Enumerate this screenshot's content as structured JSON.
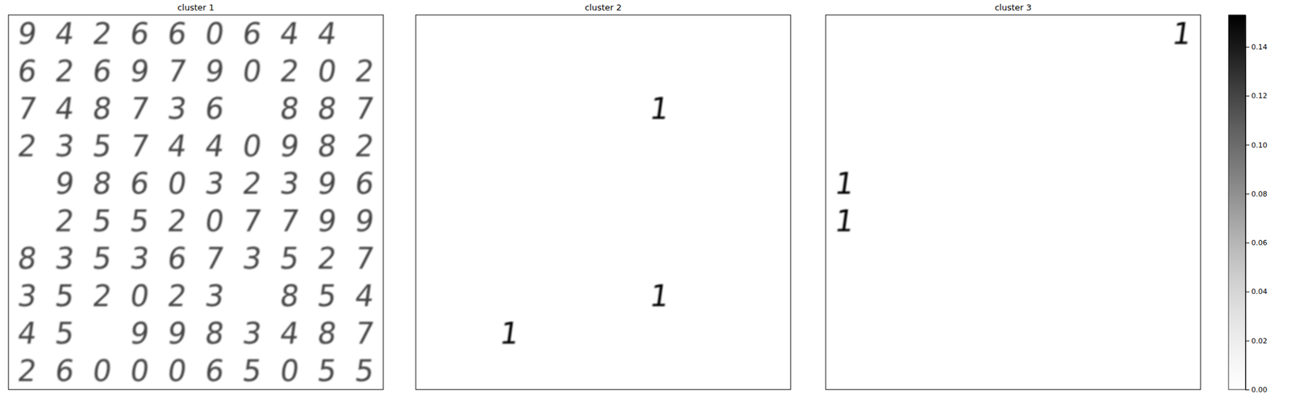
{
  "chart_data": {
    "type": "image_grid",
    "tick_labels": false,
    "color": "Greys",
    "colorbar": {
      "range": [
        0,
        0.153
      ],
      "ticks": [
        {
          "value": 0,
          "label": "0.00"
        },
        {
          "value": 0.02,
          "label": "0.02"
        },
        {
          "value": 0.04,
          "label": "0.04"
        },
        {
          "value": 0.06,
          "label": "0.06"
        },
        {
          "value": 0.08,
          "label": "0.08"
        },
        {
          "value": 0.1,
          "label": "0.10"
        },
        {
          "value": 0.12,
          "label": "0.12"
        },
        {
          "value": 0.14,
          "label": "0.14"
        }
      ]
    },
    "panels": [
      {
        "title": "cluster 1",
        "peak": 0.12,
        "cells": [
          [
            9,
            4,
            2,
            6,
            6,
            0,
            6,
            4,
            4,
            null
          ],
          [
            6,
            2,
            6,
            9,
            7,
            9,
            0,
            2,
            0,
            2
          ],
          [
            7,
            4,
            8,
            7,
            3,
            6,
            null,
            8,
            8,
            7
          ],
          [
            2,
            3,
            5,
            7,
            4,
            4,
            0,
            9,
            8,
            2
          ],
          [
            null,
            9,
            8,
            6,
            0,
            3,
            2,
            3,
            9,
            6
          ],
          [
            null,
            2,
            5,
            5,
            2,
            0,
            7,
            7,
            9,
            9
          ],
          [
            8,
            3,
            5,
            3,
            6,
            7,
            3,
            5,
            2,
            7
          ],
          [
            3,
            5,
            2,
            0,
            2,
            3,
            null,
            8,
            5,
            4
          ],
          [
            4,
            5,
            null,
            9,
            9,
            8,
            3,
            4,
            8,
            7
          ],
          [
            2,
            6,
            0,
            0,
            0,
            6,
            5,
            0,
            5,
            5
          ]
        ]
      },
      {
        "title": "cluster 2",
        "peak": 0.15,
        "cells": [
          [
            null,
            null,
            null,
            null,
            null,
            null,
            null,
            null,
            null,
            null
          ],
          [
            null,
            null,
            null,
            null,
            null,
            null,
            null,
            null,
            null,
            null
          ],
          [
            null,
            null,
            null,
            null,
            null,
            null,
            1,
            null,
            null,
            null
          ],
          [
            null,
            null,
            null,
            null,
            null,
            null,
            null,
            null,
            null,
            null
          ],
          [
            null,
            null,
            null,
            null,
            null,
            null,
            null,
            null,
            null,
            null
          ],
          [
            null,
            null,
            null,
            null,
            null,
            null,
            null,
            null,
            null,
            null
          ],
          [
            null,
            null,
            null,
            null,
            null,
            null,
            null,
            null,
            null,
            null
          ],
          [
            null,
            null,
            null,
            null,
            null,
            null,
            1,
            null,
            null,
            null
          ],
          [
            null,
            null,
            1,
            null,
            null,
            null,
            null,
            null,
            null,
            null
          ],
          [
            null,
            null,
            null,
            null,
            null,
            null,
            null,
            null,
            null,
            null
          ]
        ]
      },
      {
        "title": "cluster 3",
        "peak": 0.15,
        "cells": [
          [
            null,
            null,
            null,
            null,
            null,
            null,
            null,
            null,
            null,
            1
          ],
          [
            null,
            null,
            null,
            null,
            null,
            null,
            null,
            null,
            null,
            null
          ],
          [
            null,
            null,
            null,
            null,
            null,
            null,
            null,
            null,
            null,
            null
          ],
          [
            null,
            null,
            null,
            null,
            null,
            null,
            null,
            null,
            null,
            null
          ],
          [
            1,
            null,
            null,
            null,
            null,
            null,
            null,
            null,
            null,
            null
          ],
          [
            1,
            null,
            null,
            null,
            null,
            null,
            null,
            null,
            null,
            null
          ],
          [
            null,
            null,
            null,
            null,
            null,
            null,
            null,
            null,
            null,
            null
          ],
          [
            null,
            null,
            null,
            null,
            null,
            null,
            null,
            null,
            null,
            null
          ],
          [
            null,
            null,
            null,
            null,
            null,
            null,
            null,
            null,
            null,
            null
          ],
          [
            null,
            null,
            null,
            null,
            null,
            null,
            null,
            null,
            null,
            null
          ]
        ]
      }
    ]
  }
}
